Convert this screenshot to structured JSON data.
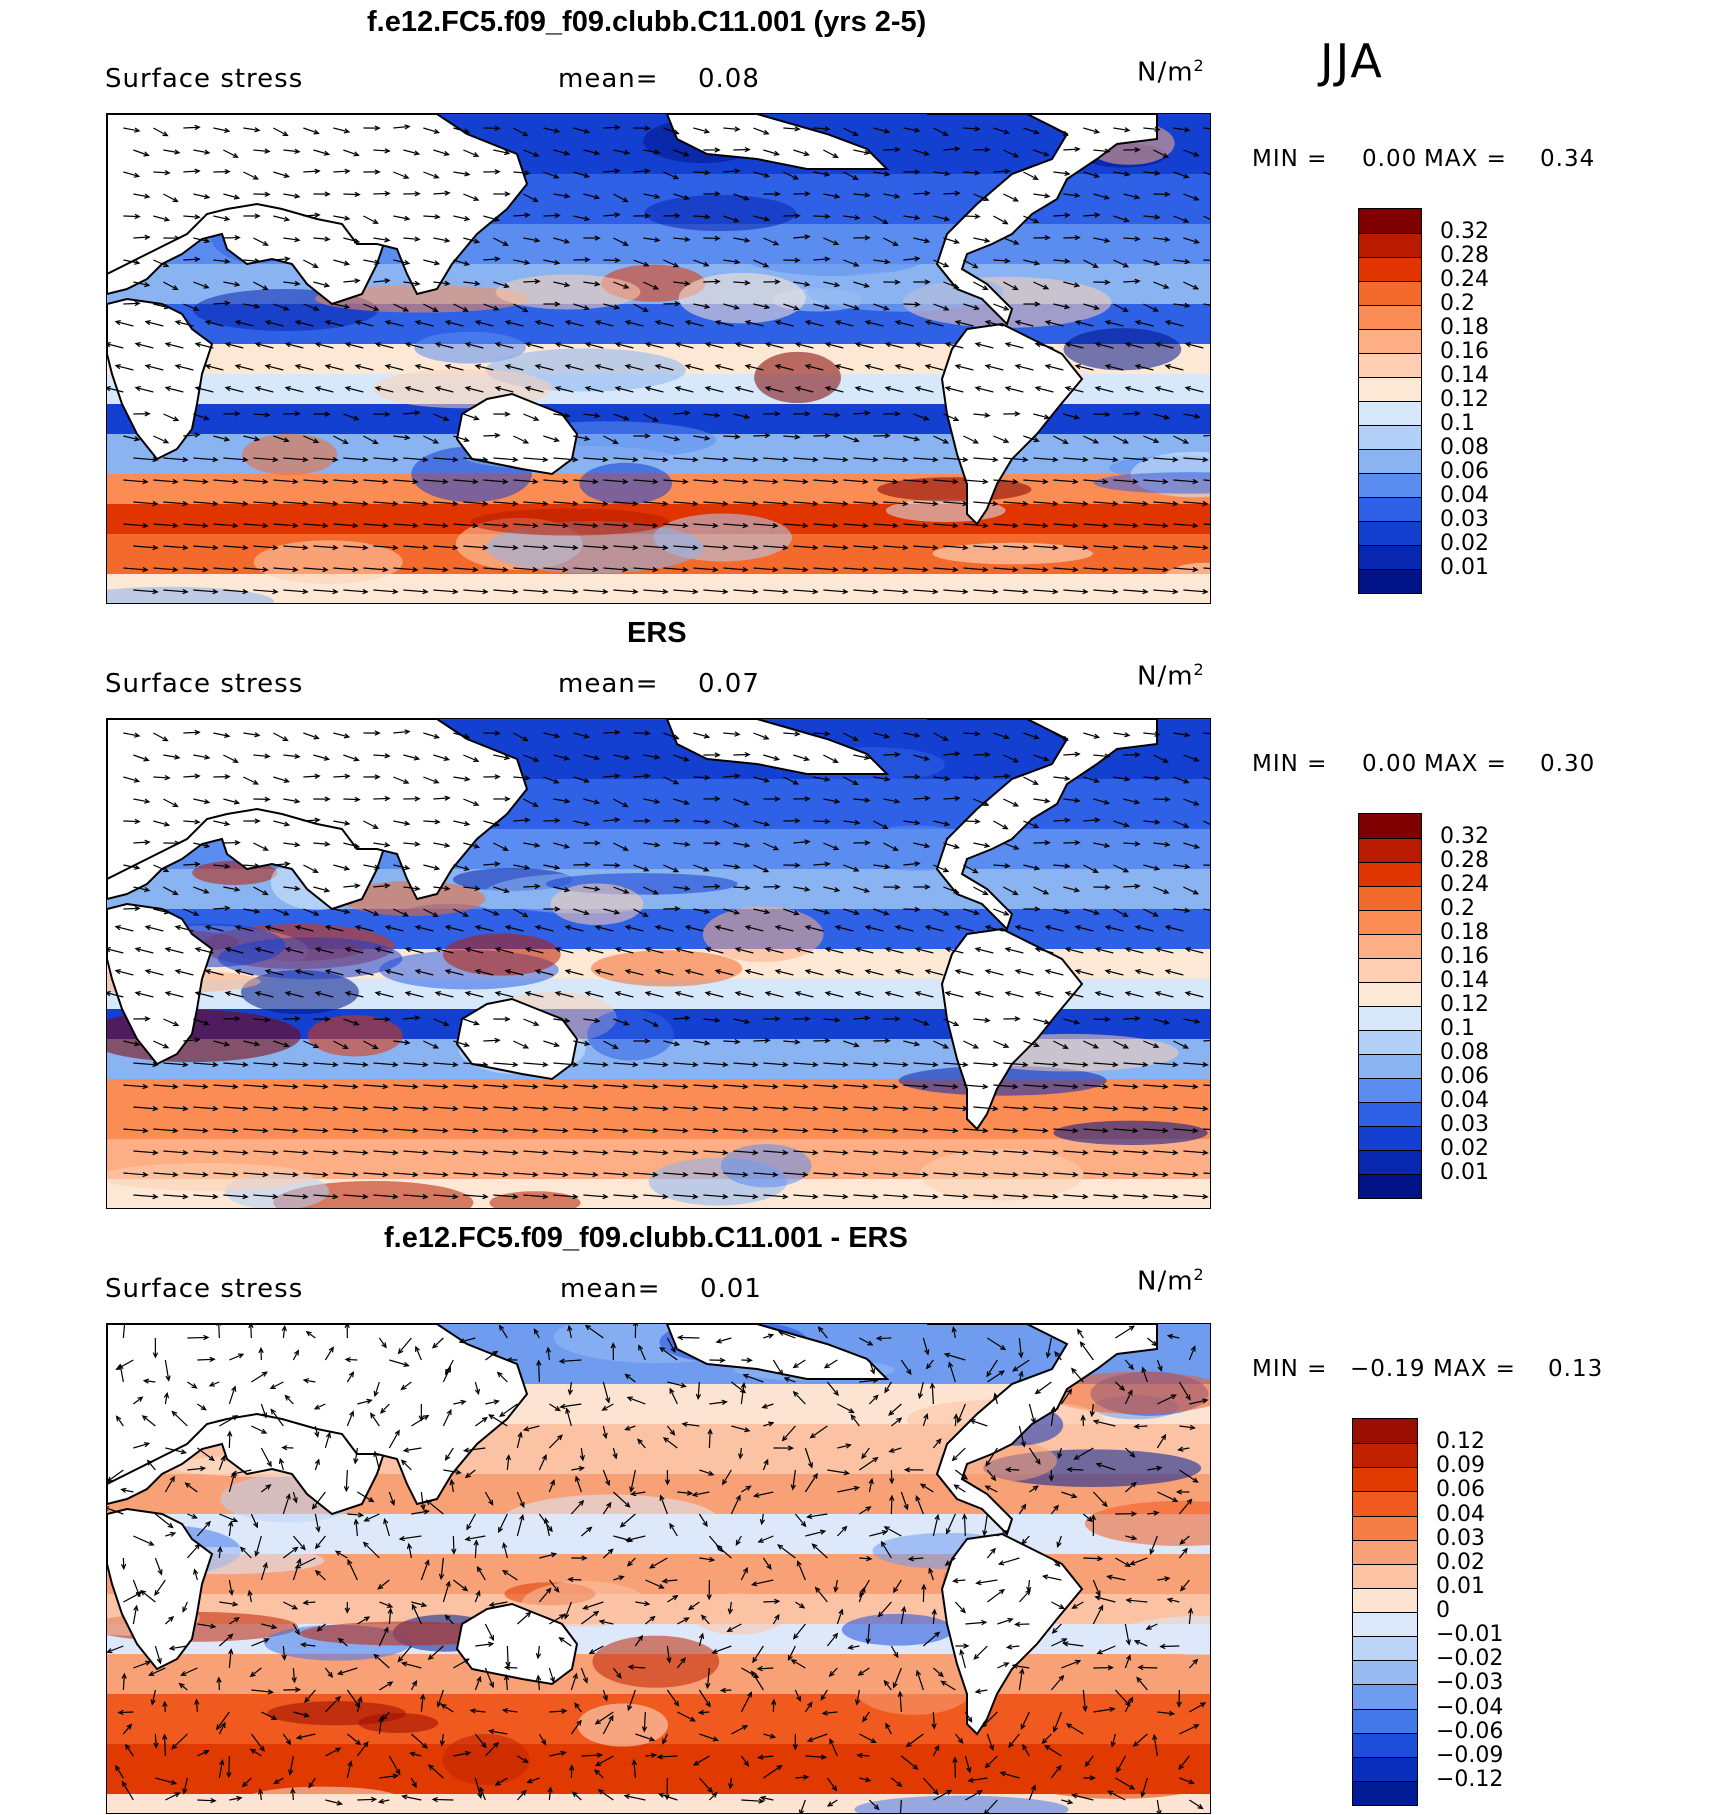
{
  "season": "JJA",
  "unit_base": "N/m",
  "unit_exp": "2",
  "panels": [
    {
      "title": "f.e12.FC5.f09_f09.clubb.C11.001 (yrs 2-5)",
      "variable": "Surface stress",
      "mean_label": "mean=",
      "mean_value": "0.08",
      "min_label": "MIN =",
      "min_value": "0.00",
      "max_label": "MAX =",
      "max_value": "0.34",
      "colorbar": [
        "0.32",
        "0.28",
        "0.24",
        "0.2",
        "0.18",
        "0.16",
        "0.14",
        "0.12",
        "0.1",
        "0.08",
        "0.06",
        "0.04",
        "0.03",
        "0.02",
        "0.01"
      ],
      "colors": [
        "#7f0000",
        "#b81b00",
        "#e03500",
        "#f46a2c",
        "#fb8c54",
        "#fdae84",
        "#fecfb2",
        "#fde8d6",
        "#d6e8fa",
        "#b2d0f7",
        "#8ab3f1",
        "#5b8df0",
        "#2f61e6",
        "#1440d2",
        "#0727b0",
        "#001488"
      ]
    },
    {
      "title": "ERS",
      "variable": "Surface stress",
      "mean_label": "mean=",
      "mean_value": "0.07",
      "min_label": "MIN =",
      "min_value": "0.00",
      "max_label": "MAX =",
      "max_value": "0.30",
      "colorbar": [
        "0.32",
        "0.28",
        "0.24",
        "0.2",
        "0.18",
        "0.16",
        "0.14",
        "0.12",
        "0.1",
        "0.08",
        "0.06",
        "0.04",
        "0.03",
        "0.02",
        "0.01"
      ],
      "colors": [
        "#7f0000",
        "#b81b00",
        "#e03500",
        "#f46a2c",
        "#fb8c54",
        "#fdae84",
        "#fecfb2",
        "#fde8d6",
        "#d6e8fa",
        "#b2d0f7",
        "#8ab3f1",
        "#5b8df0",
        "#2f61e6",
        "#1440d2",
        "#0727b0",
        "#001488"
      ]
    },
    {
      "title": "f.e12.FC5.f09_f09.clubb.C11.001 - ERS",
      "variable": "Surface stress",
      "mean_label": "mean=",
      "mean_value": "0.01",
      "min_label": "MIN =",
      "min_value": "−0.19",
      "max_label": "MAX =",
      "max_value": "0.13",
      "colorbar": [
        "0.12",
        "0.09",
        "0.06",
        "0.04",
        "0.03",
        "0.02",
        "0.01",
        "0",
        "−0.01",
        "−0.02",
        "−0.03",
        "−0.04",
        "−0.06",
        "−0.09",
        "−0.12"
      ],
      "colors": [
        "#9b0d00",
        "#c02200",
        "#e03a00",
        "#f05a1f",
        "#f57d46",
        "#f8a076",
        "#fbc3a4",
        "#fde3d1",
        "#dde9fb",
        "#bcd4f7",
        "#98bbf2",
        "#6f9cef",
        "#4278ea",
        "#1d4fdc",
        "#0a2fbd",
        "#001d96"
      ]
    }
  ]
}
